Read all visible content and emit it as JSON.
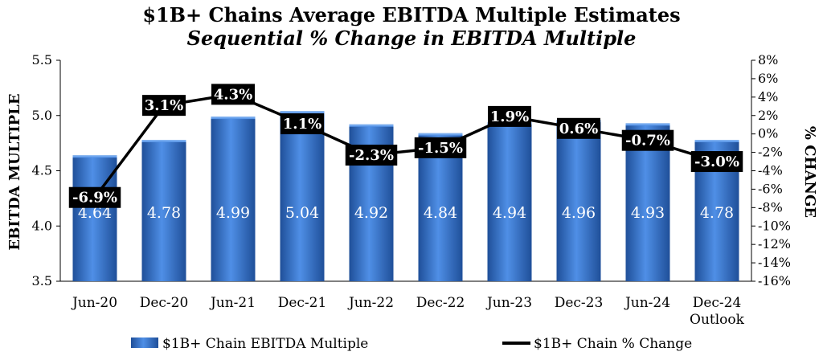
{
  "chart_data": {
    "type": "bar",
    "title": "$1B+ Chains Average EBITDA Multiple Estimates",
    "subtitle": "Sequential % Change in EBITDA Multiple",
    "ylabel": "EBITDA MULTIPLE",
    "y2label": "% CHANGE",
    "ylim": [
      3.5,
      5.5
    ],
    "y_ticks": [
      "3.5",
      "4.0",
      "4.5",
      "5.0",
      "5.5"
    ],
    "y2lim": [
      -16,
      8
    ],
    "y2_ticks": [
      "8%",
      "6%",
      "4%",
      "2%",
      "0%",
      "-2%",
      "-4%",
      "-6%",
      "-8%",
      "-10%",
      "-12%",
      "-14%",
      "-16%"
    ],
    "categories": [
      "Jun-20",
      "Dec-20",
      "Jun-21",
      "Dec-21",
      "Jun-22",
      "Dec-22",
      "Jun-23",
      "Dec-23",
      "Jun-24",
      "Dec-24 Outlook"
    ],
    "series": [
      {
        "name": "$1B+ Chain EBITDA Multiple",
        "type": "bar",
        "axis": "left",
        "values": [
          4.64,
          4.78,
          4.99,
          5.04,
          4.92,
          4.84,
          4.94,
          4.96,
          4.93,
          4.78
        ],
        "labels": [
          "4.64",
          "4.78",
          "4.99",
          "5.04",
          "4.92",
          "4.84",
          "4.94",
          "4.96",
          "4.93",
          "4.78"
        ]
      },
      {
        "name": "$1B+ Chain % Change",
        "type": "line",
        "axis": "right",
        "values": [
          -6.9,
          3.1,
          4.3,
          1.1,
          -2.3,
          -1.5,
          1.9,
          0.6,
          -0.7,
          -3.0
        ],
        "labels": [
          "-6.9%",
          "3.1%",
          "4.3%",
          "1.1%",
          "-2.3%",
          "-1.5%",
          "1.9%",
          "0.6%",
          "-0.7%",
          "-3.0%"
        ]
      }
    ],
    "legend": "bottom",
    "grid": false,
    "colors": {
      "bar": "#3a7dd6",
      "bar_dark": "#1f4f99",
      "line": "#000000",
      "label_box": "#000000"
    }
  }
}
